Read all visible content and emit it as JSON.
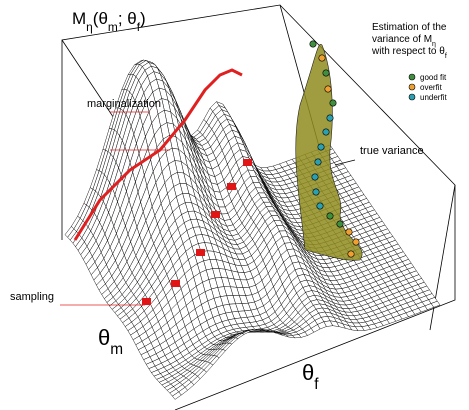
{
  "axes": {
    "z_label": [
      {
        "text": "M"
      },
      {
        "text": "η",
        "sub": true
      },
      {
        "text": "(θ"
      },
      {
        "text": "m",
        "sub": true
      },
      {
        "text": "; θ"
      },
      {
        "text": "f",
        "sub": true
      },
      {
        "text": ")"
      }
    ],
    "x_label": [
      {
        "text": "θ"
      },
      {
        "text": "m",
        "sub": true
      }
    ],
    "y_label": [
      {
        "text": "θ"
      },
      {
        "text": "f",
        "sub": true
      }
    ]
  },
  "annotations": {
    "marginalization": "marginalization",
    "true_variance": "true variance",
    "sampling": "sampling"
  },
  "estimation_box": {
    "lines": [
      [
        {
          "text": "Estimation of the"
        }
      ],
      [
        {
          "text": "variance of M"
        },
        {
          "text": "η",
          "sub": true
        }
      ],
      [
        {
          "text": "with respect to "
        },
        {
          "text": "θ"
        },
        {
          "text": "f",
          "sub": true
        }
      ]
    ]
  },
  "legend": [
    {
      "label": "good fit",
      "color": "#3f8f3f"
    },
    {
      "label": "overfit",
      "color": "#f0a030"
    },
    {
      "label": "underfit",
      "color": "#2aa0b0"
    }
  ]
}
